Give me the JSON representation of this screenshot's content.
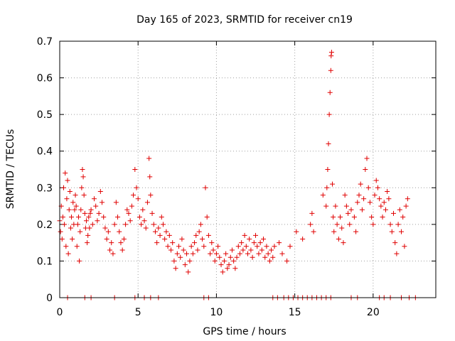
{
  "chart_data": {
    "type": "scatter",
    "title": "Day 165 of 2023, SRMTID for receiver cn19",
    "xlabel": "GPS time / hours",
    "ylabel": "SRMTID / TECUs",
    "xlim": [
      0,
      24
    ],
    "ylim": [
      0,
      0.7
    ],
    "xticks": [
      0,
      5,
      10,
      15,
      20
    ],
    "yticks": [
      0,
      0.1,
      0.2,
      0.3,
      0.4,
      0.5,
      0.6,
      0.7
    ],
    "xtick_labels": [
      "0",
      "5",
      "10",
      "15",
      "20"
    ],
    "ytick_labels": [
      "0",
      "0.1",
      "0.2",
      "0.3",
      "0.4",
      "0.5",
      "0.6",
      "0.7"
    ],
    "grid": true,
    "marker": "+",
    "series_color": "#e00000",
    "series": [
      {
        "name": "SRMTID",
        "points": [
          [
            0.0,
            0.21
          ],
          [
            0.05,
            0.18
          ],
          [
            0.1,
            0.25
          ],
          [
            0.15,
            0.16
          ],
          [
            0.2,
            0.22
          ],
          [
            0.25,
            0.3
          ],
          [
            0.3,
            0.2
          ],
          [
            0.35,
            0.34
          ],
          [
            0.4,
            0.14
          ],
          [
            0.45,
            0.27
          ],
          [
            0.5,
            0.32
          ],
          [
            0.55,
            0.12
          ],
          [
            0.6,
            0.24
          ],
          [
            0.65,
            0.29
          ],
          [
            0.7,
            0.19
          ],
          [
            0.75,
            0.22
          ],
          [
            0.8,
            0.16
          ],
          [
            0.85,
            0.26
          ],
          [
            0.9,
            0.2
          ],
          [
            0.95,
            0.24
          ],
          [
            1.0,
            0.28
          ],
          [
            1.05,
            0.25
          ],
          [
            1.1,
            0.14
          ],
          [
            1.15,
            0.2
          ],
          [
            1.2,
            0.22
          ],
          [
            1.25,
            0.1
          ],
          [
            1.3,
            0.18
          ],
          [
            1.35,
            0.24
          ],
          [
            1.4,
            0.3
          ],
          [
            1.45,
            0.35
          ],
          [
            1.5,
            0.33
          ],
          [
            1.55,
            0.28
          ],
          [
            1.6,
            0.23
          ],
          [
            1.65,
            0.19
          ],
          [
            1.7,
            0.21
          ],
          [
            1.75,
            0.15
          ],
          [
            1.8,
            0.17
          ],
          [
            1.85,
            0.22
          ],
          [
            1.9,
            0.19
          ],
          [
            1.95,
            0.23
          ],
          [
            2.0,
            0.24
          ],
          [
            2.1,
            0.2
          ],
          [
            2.2,
            0.27
          ],
          [
            2.3,
            0.25
          ],
          [
            2.4,
            0.21
          ],
          [
            2.5,
            0.23
          ],
          [
            2.6,
            0.29
          ],
          [
            2.7,
            0.26
          ],
          [
            2.8,
            0.22
          ],
          [
            2.9,
            0.19
          ],
          [
            3.0,
            0.16
          ],
          [
            3.1,
            0.18
          ],
          [
            3.2,
            0.13
          ],
          [
            3.3,
            0.15
          ],
          [
            3.4,
            0.12
          ],
          [
            3.5,
            0.2
          ],
          [
            3.6,
            0.26
          ],
          [
            3.7,
            0.22
          ],
          [
            3.8,
            0.18
          ],
          [
            3.9,
            0.15
          ],
          [
            4.0,
            0.13
          ],
          [
            4.1,
            0.16
          ],
          [
            4.2,
            0.2
          ],
          [
            4.3,
            0.24
          ],
          [
            4.4,
            0.23
          ],
          [
            4.5,
            0.21
          ],
          [
            4.6,
            0.25
          ],
          [
            4.7,
            0.28
          ],
          [
            4.8,
            0.35
          ],
          [
            4.9,
            0.3
          ],
          [
            5.0,
            0.27
          ],
          [
            5.1,
            0.22
          ],
          [
            5.2,
            0.2
          ],
          [
            5.3,
            0.24
          ],
          [
            5.4,
            0.21
          ],
          [
            5.5,
            0.19
          ],
          [
            5.6,
            0.26
          ],
          [
            5.7,
            0.38
          ],
          [
            5.75,
            0.33
          ],
          [
            5.8,
            0.28
          ],
          [
            5.9,
            0.23
          ],
          [
            6.0,
            0.2
          ],
          [
            6.1,
            0.18
          ],
          [
            6.2,
            0.15
          ],
          [
            6.3,
            0.19
          ],
          [
            6.4,
            0.17
          ],
          [
            6.5,
            0.22
          ],
          [
            6.6,
            0.2
          ],
          [
            6.7,
            0.16
          ],
          [
            6.8,
            0.18
          ],
          [
            6.9,
            0.14
          ],
          [
            7.0,
            0.17
          ],
          [
            7.1,
            0.13
          ],
          [
            7.2,
            0.15
          ],
          [
            7.3,
            0.1
          ],
          [
            7.4,
            0.08
          ],
          [
            7.5,
            0.12
          ],
          [
            7.6,
            0.14
          ],
          [
            7.7,
            0.11
          ],
          [
            7.8,
            0.16
          ],
          [
            7.9,
            0.13
          ],
          [
            8.0,
            0.09
          ],
          [
            8.1,
            0.12
          ],
          [
            8.2,
            0.07
          ],
          [
            8.3,
            0.1
          ],
          [
            8.4,
            0.14
          ],
          [
            8.5,
            0.12
          ],
          [
            8.6,
            0.15
          ],
          [
            8.7,
            0.17
          ],
          [
            8.8,
            0.13
          ],
          [
            8.9,
            0.18
          ],
          [
            9.0,
            0.2
          ],
          [
            9.1,
            0.16
          ],
          [
            9.2,
            0.14
          ],
          [
            9.3,
            0.3
          ],
          [
            9.4,
            0.22
          ],
          [
            9.5,
            0.17
          ],
          [
            9.6,
            0.12
          ],
          [
            9.7,
            0.15
          ],
          [
            9.8,
            0.13
          ],
          [
            9.9,
            0.1
          ],
          [
            10.0,
            0.12
          ],
          [
            10.1,
            0.14
          ],
          [
            10.2,
            0.11
          ],
          [
            10.3,
            0.09
          ],
          [
            10.4,
            0.07
          ],
          [
            10.5,
            0.1
          ],
          [
            10.6,
            0.12
          ],
          [
            10.7,
            0.08
          ],
          [
            10.8,
            0.09
          ],
          [
            10.9,
            0.11
          ],
          [
            11.0,
            0.13
          ],
          [
            11.1,
            0.1
          ],
          [
            11.2,
            0.08
          ],
          [
            11.3,
            0.11
          ],
          [
            11.4,
            0.14
          ],
          [
            11.5,
            0.12
          ],
          [
            11.6,
            0.15
          ],
          [
            11.7,
            0.13
          ],
          [
            11.8,
            0.17
          ],
          [
            11.9,
            0.14
          ],
          [
            12.0,
            0.12
          ],
          [
            12.1,
            0.16
          ],
          [
            12.2,
            0.13
          ],
          [
            12.3,
            0.11
          ],
          [
            12.4,
            0.15
          ],
          [
            12.5,
            0.17
          ],
          [
            12.6,
            0.14
          ],
          [
            12.7,
            0.12
          ],
          [
            12.8,
            0.15
          ],
          [
            12.9,
            0.13
          ],
          [
            13.0,
            0.16
          ],
          [
            13.1,
            0.11
          ],
          [
            13.2,
            0.14
          ],
          [
            13.3,
            0.12
          ],
          [
            13.4,
            0.1
          ],
          [
            13.5,
            0.13
          ],
          [
            13.6,
            0.11
          ],
          [
            13.7,
            0.14
          ],
          [
            14.0,
            0.15
          ],
          [
            14.2,
            0.12
          ],
          [
            14.5,
            0.1
          ],
          [
            14.7,
            0.14
          ],
          [
            15.1,
            0.18
          ],
          [
            15.5,
            0.16
          ],
          [
            16.0,
            0.2
          ],
          [
            16.1,
            0.23
          ],
          [
            16.2,
            0.18
          ],
          [
            16.8,
            0.28
          ],
          [
            17.0,
            0.25
          ],
          [
            17.05,
            0.3
          ],
          [
            17.1,
            0.35
          ],
          [
            17.15,
            0.42
          ],
          [
            17.2,
            0.5
          ],
          [
            17.25,
            0.56
          ],
          [
            17.3,
            0.62
          ],
          [
            17.32,
            0.66
          ],
          [
            17.35,
            0.67
          ],
          [
            17.4,
            0.31
          ],
          [
            17.45,
            0.22
          ],
          [
            17.5,
            0.18
          ],
          [
            17.6,
            0.25
          ],
          [
            17.7,
            0.2
          ],
          [
            17.8,
            0.16
          ],
          [
            17.9,
            0.22
          ],
          [
            18.0,
            0.19
          ],
          [
            18.1,
            0.15
          ],
          [
            18.2,
            0.28
          ],
          [
            18.3,
            0.25
          ],
          [
            18.4,
            0.23
          ],
          [
            18.5,
            0.2
          ],
          [
            18.6,
            0.24
          ],
          [
            18.8,
            0.22
          ],
          [
            18.9,
            0.18
          ],
          [
            19.0,
            0.26
          ],
          [
            19.1,
            0.28
          ],
          [
            19.2,
            0.31
          ],
          [
            19.3,
            0.24
          ],
          [
            19.4,
            0.27
          ],
          [
            19.5,
            0.35
          ],
          [
            19.6,
            0.38
          ],
          [
            19.7,
            0.3
          ],
          [
            19.8,
            0.26
          ],
          [
            19.9,
            0.22
          ],
          [
            20.0,
            0.2
          ],
          [
            20.1,
            0.28
          ],
          [
            20.2,
            0.32
          ],
          [
            20.3,
            0.3
          ],
          [
            20.4,
            0.27
          ],
          [
            20.5,
            0.25
          ],
          [
            20.6,
            0.22
          ],
          [
            20.7,
            0.26
          ],
          [
            20.8,
            0.24
          ],
          [
            20.9,
            0.29
          ],
          [
            21.0,
            0.27
          ],
          [
            21.1,
            0.2
          ],
          [
            21.2,
            0.18
          ],
          [
            21.3,
            0.23
          ],
          [
            21.4,
            0.15
          ],
          [
            21.5,
            0.12
          ],
          [
            21.6,
            0.2
          ],
          [
            21.7,
            0.24
          ],
          [
            21.8,
            0.18
          ],
          [
            21.9,
            0.22
          ],
          [
            22.0,
            0.14
          ],
          [
            22.1,
            0.25
          ],
          [
            22.2,
            0.27
          ],
          [
            0.5,
            0.0
          ],
          [
            1.6,
            0.0
          ],
          [
            2.0,
            0.0
          ],
          [
            3.5,
            0.0
          ],
          [
            4.8,
            0.0
          ],
          [
            5.4,
            0.0
          ],
          [
            5.8,
            0.0
          ],
          [
            6.3,
            0.0
          ],
          [
            9.2,
            0.0
          ],
          [
            9.5,
            0.0
          ],
          [
            13.6,
            0.0
          ],
          [
            13.9,
            0.0
          ],
          [
            14.3,
            0.0
          ],
          [
            14.6,
            0.0
          ],
          [
            14.9,
            0.0
          ],
          [
            15.2,
            0.0
          ],
          [
            15.5,
            0.0
          ],
          [
            15.8,
            0.0
          ],
          [
            16.1,
            0.0
          ],
          [
            16.4,
            0.0
          ],
          [
            16.7,
            0.0
          ],
          [
            17.0,
            0.0
          ],
          [
            17.3,
            0.0
          ],
          [
            18.6,
            0.0
          ],
          [
            19.0,
            0.0
          ],
          [
            20.4,
            0.0
          ],
          [
            20.7,
            0.0
          ],
          [
            21.1,
            0.0
          ],
          [
            21.8,
            0.0
          ],
          [
            22.3,
            0.0
          ],
          [
            22.7,
            0.0
          ]
        ]
      }
    ]
  }
}
